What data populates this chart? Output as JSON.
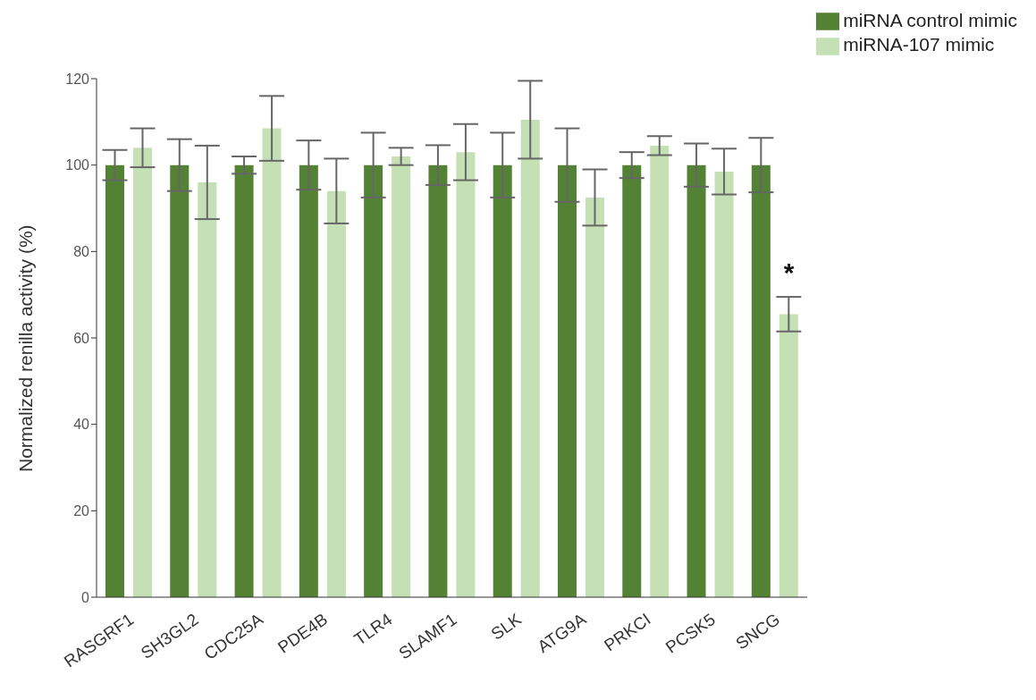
{
  "chart_data": {
    "type": "bar",
    "ylabel": "Normalized renilla activity (%)",
    "categories": [
      "RASGRF1",
      "SH3GL2",
      "CDC25A",
      "PDE4B",
      "TLR4",
      "SLAMF1",
      "SLK",
      "ATG9A",
      "PRKCI",
      "PCSK5",
      "SNCG"
    ],
    "series": [
      {
        "name": "miRNA control mimic",
        "color": "#548235",
        "values": [
          100,
          100,
          100,
          100,
          100,
          100,
          100,
          100,
          100,
          100,
          100
        ],
        "errors": [
          3.5,
          6,
          2,
          5.7,
          7.5,
          4.6,
          7.5,
          8.5,
          3,
          5,
          6.3
        ]
      },
      {
        "name": "miRNA-107 mimic",
        "color": "#c5e0b4",
        "values": [
          104,
          96,
          108.5,
          94,
          102,
          103,
          110.5,
          92.5,
          104.5,
          98.5,
          65.5
        ],
        "errors": [
          4.5,
          8.5,
          7.5,
          7.5,
          2,
          6.5,
          9,
          6.5,
          2.2,
          5.3,
          4
        ]
      }
    ],
    "ylim": [
      0,
      120
    ],
    "yticks": [
      0,
      20,
      40,
      60,
      80,
      100,
      120
    ],
    "grid": false,
    "legend": "top right",
    "annotations": [
      "*"
    ]
  }
}
